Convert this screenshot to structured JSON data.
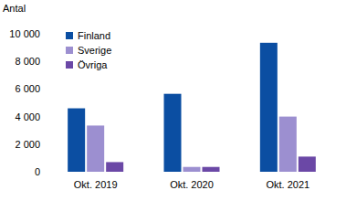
{
  "chart_data": {
    "type": "bar",
    "y_label": "Antal",
    "categories": [
      "Okt. 2019",
      "Okt. 2020",
      "Okt. 2021"
    ],
    "series": [
      {
        "name": "Finland",
        "color": "#0b4ea2",
        "values": [
          4600,
          5650,
          9350
        ]
      },
      {
        "name": "Sverige",
        "color": "#9c8fd0",
        "values": [
          3350,
          350,
          4000
        ]
      },
      {
        "name": "Övriga",
        "color": "#6b48a6",
        "values": [
          700,
          350,
          1100
        ]
      }
    ],
    "ylim": [
      0,
      10000
    ],
    "yticks": [
      0,
      {
        "value": 2000,
        "label": "2 000"
      },
      {
        "value": 4000,
        "label": "4 000"
      },
      {
        "value": 6000,
        "label": "6 000"
      },
      {
        "value": 8000,
        "label": "8 000"
      },
      {
        "value": 10000,
        "label": "10 000"
      }
    ],
    "grid": false,
    "legend": "top-left"
  }
}
